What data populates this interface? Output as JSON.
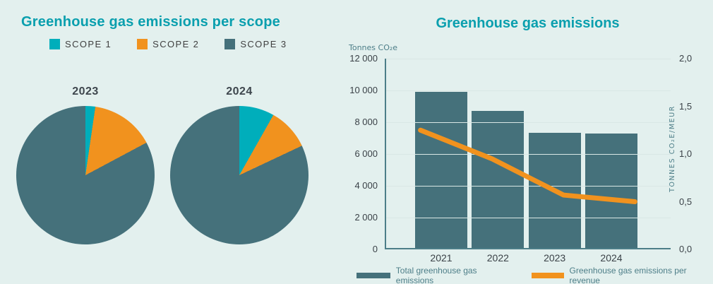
{
  "colors": {
    "background": "#e3f0ee",
    "scope1": "#00aebb",
    "scope2": "#f1921e",
    "scope3": "#45717b",
    "title": "#0a9fae",
    "axis": "#4d7e88",
    "tick_text": "#3a4147",
    "gridline": "#d9e7e5"
  },
  "left_chart": {
    "title": "Greenhouse gas emissions per scope",
    "legend": [
      {
        "label": "SCOPE 1",
        "color": "#00aebb"
      },
      {
        "label": "SCOPE 2",
        "color": "#f1921e"
      },
      {
        "label": "SCOPE 3",
        "color": "#45717b"
      }
    ],
    "pies": [
      {
        "year": "2023"
      },
      {
        "year": "2024"
      }
    ]
  },
  "right_chart": {
    "title": "Greenhouse gas emissions",
    "y_left_title": "Tonnes CO₂e",
    "y_right_title": "TONNES CO₂E/MEUR",
    "y_left_tick_labels": [
      "0",
      "2 000",
      "4 000",
      "6 000",
      "8 000",
      "10 000",
      "12 000"
    ],
    "y_right_tick_labels": [
      "0,0",
      "0,5",
      "1,0",
      "1,5",
      "2,0"
    ],
    "x_labels": [
      "2021",
      "2022",
      "2023",
      "2024"
    ],
    "legend": [
      {
        "label": "Total greenhouse gas emissions",
        "color": "#45717b",
        "type": "bar"
      },
      {
        "label": "Greenhouse gas emissions per revenue",
        "color": "#f1921e",
        "type": "line"
      }
    ]
  },
  "chart_data": [
    {
      "type": "pie",
      "title": "2023",
      "labels": [
        "Scope 1",
        "Scope 2",
        "Scope 3"
      ],
      "values_pct": [
        2.3,
        14.9,
        82.8
      ]
    },
    {
      "type": "pie",
      "title": "2024",
      "labels": [
        "Scope 1",
        "Scope 2",
        "Scope 3"
      ],
      "values_pct": [
        8.2,
        9.8,
        82.0
      ]
    },
    {
      "type": "bar-line",
      "title": "Greenhouse gas emissions",
      "categories": [
        "2021",
        "2022",
        "2023",
        "2024"
      ],
      "series": [
        {
          "name": "Total greenhouse gas emissions",
          "type": "bar",
          "axis": "left",
          "values": [
            9900,
            8700,
            7350,
            7300
          ]
        },
        {
          "name": "Greenhouse gas emissions per revenue",
          "type": "line",
          "axis": "right",
          "values": [
            1.25,
            0.95,
            0.57,
            0.5
          ]
        }
      ],
      "y_left": {
        "label": "Tonnes CO2e",
        "range": [
          0,
          12000
        ],
        "tick_step": 2000
      },
      "y_right": {
        "label": "Tonnes CO2e/MEUR",
        "range": [
          0,
          2.0
        ],
        "tick_step": 0.5
      },
      "grid": true,
      "legend_position": "bottom"
    }
  ]
}
